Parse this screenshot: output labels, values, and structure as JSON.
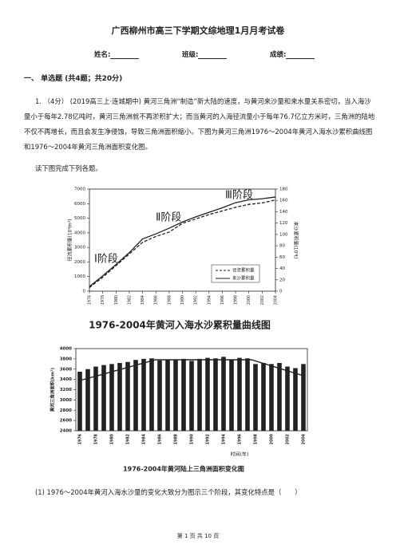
{
  "header": {
    "title": "广西柳州市高三下学期文综地理1月月考试卷",
    "fields": [
      "姓名:",
      "班级:",
      "成绩:"
    ]
  },
  "section": "一、 单选题 (共4题；共20分)",
  "question": {
    "text": "1. （4分） (2019高三上·连城期中) 黄河三角洲“制造”新大陆的速度，与黄河来沙量和来水量关系密切，当入海沙量小于每年2.78亿吨时，黄河三角洲就不再淤积扩大；而当黄河的入海径流量小于每年76.7亿立方米时，三角洲的陆地不仅不再增长，而且会发生净侵蚀，导致三角洲面积缩小。下图为黄河三角洲1976～2004年黄河入海水沙累积曲线图和1976～2004年黄河三角洲面积变化图。",
    "instruction": "读下图完成下列各题。",
    "sub_question": "(1)   1976～2004年黄河入海水沙量的变化大致分为图示三个阶段，其变化特点是（　　）"
  },
  "chart_data": [
    {
      "type": "line",
      "title": "1976-2004年黄河入海水沙累积量曲线图",
      "y_label": "径流累积量(10⁸m³)",
      "y2_label": "来沙累积量(10⁸t)",
      "annotations": [
        "Ⅰ阶段",
        "Ⅱ阶段",
        "Ⅲ阶段"
      ],
      "x": [
        1976,
        1978,
        1980,
        1982,
        1984,
        1986,
        1988,
        1990,
        1992,
        1994,
        1996,
        1998,
        2000,
        2002,
        2004
      ],
      "xlim": [
        1976,
        2004
      ],
      "xticks": [
        1976,
        1978,
        1980,
        1982,
        1984,
        1986,
        1988,
        1990,
        1992,
        1994,
        1996,
        1998,
        2000,
        2002,
        2004
      ],
      "ylim": [
        0,
        7000
      ],
      "yticks": [
        0,
        1000,
        2000,
        3000,
        4000,
        5000,
        6000,
        7000
      ],
      "y2lim": [
        0,
        180
      ],
      "y2ticks": [
        0,
        20,
        40,
        60,
        80,
        100,
        120,
        140,
        160,
        180
      ],
      "legend": "lower right",
      "series": [
        {
          "name": "径流累积量",
          "color": "#222",
          "dash": true,
          "values": [
            250,
            950,
            1750,
            2550,
            3350,
            3750,
            4050,
            4650,
            4950,
            5250,
            5500,
            5750,
            5950,
            6050,
            6250
          ]
        },
        {
          "name": "来沙累积量",
          "color": "#222",
          "dash": false,
          "axis": "y2",
          "values": [
            8,
            27,
            47,
            68,
            92,
            101,
            111,
            122,
            131,
            139,
            147,
            156,
            161,
            163,
            166
          ]
        }
      ]
    },
    {
      "type": "bar",
      "title": "1976-2004年黄河陆上三角洲面积变化图",
      "y_label": "黄河三角洲面积(km²)",
      "x_label": "时间(年)",
      "color": "#222",
      "categories": [
        "1976",
        null,
        "1978",
        null,
        "1980",
        null,
        "1982",
        null,
        "1984",
        null,
        "1986",
        null,
        "1988",
        null,
        "1990",
        null,
        "1992",
        null,
        "1994",
        null,
        "1996",
        null,
        "1998",
        null,
        "2000",
        null,
        "2002",
        null,
        "2004"
      ],
      "values": [
        3550,
        3600,
        3650,
        3680,
        3700,
        3720,
        3740,
        3780,
        3800,
        3810,
        3770,
        3780,
        3790,
        3800,
        3760,
        3800,
        3820,
        3810,
        3840,
        3790,
        3820,
        3810,
        3700,
        3720,
        3700,
        3720,
        3650,
        3620,
        3700
      ],
      "ylim": [
        2400,
        4000
      ],
      "yticks": [
        2400,
        2600,
        2800,
        3000,
        3200,
        3400,
        3600,
        3800,
        4000
      ]
    }
  ],
  "footer": "第 1 页 共 10 页"
}
